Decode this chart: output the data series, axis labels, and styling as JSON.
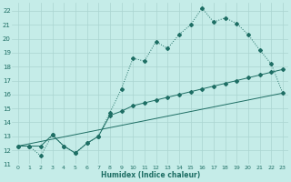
{
  "xlabel": "Humidex (Indice chaleur)",
  "background_color": "#c5ece8",
  "grid_color": "#aad4d0",
  "line_color": "#1e6e64",
  "xlim": [
    -0.5,
    23.5
  ],
  "ylim": [
    11,
    22.6
  ],
  "xticks": [
    0,
    1,
    2,
    3,
    4,
    5,
    6,
    7,
    8,
    9,
    10,
    11,
    12,
    13,
    14,
    15,
    16,
    17,
    18,
    19,
    20,
    21,
    22,
    23
  ],
  "yticks": [
    11,
    12,
    13,
    14,
    15,
    16,
    17,
    18,
    19,
    20,
    21,
    22
  ],
  "line1_x": [
    0,
    1,
    2,
    3,
    4,
    5,
    6,
    7,
    8,
    9,
    10,
    11,
    12,
    13,
    14,
    15,
    16,
    17,
    18,
    19,
    20,
    21,
    22,
    23
  ],
  "line1_y": [
    12.3,
    12.3,
    11.6,
    13.1,
    12.3,
    11.8,
    12.5,
    13.0,
    14.7,
    16.4,
    18.6,
    18.4,
    19.8,
    19.3,
    20.3,
    21.0,
    22.2,
    21.2,
    21.5,
    21.1,
    20.3,
    19.2,
    18.2,
    16.1
  ],
  "line2_x": [
    0,
    1,
    2,
    3,
    4,
    5,
    6,
    7,
    8,
    9,
    10,
    11,
    12,
    13,
    14,
    15,
    16,
    17,
    18,
    19,
    20,
    21,
    22,
    23
  ],
  "line2_y": [
    12.3,
    12.3,
    12.3,
    13.1,
    12.3,
    11.8,
    12.5,
    13.0,
    14.5,
    14.8,
    15.2,
    15.4,
    15.6,
    15.8,
    16.0,
    16.2,
    16.4,
    16.6,
    16.8,
    17.0,
    17.2,
    17.4,
    17.6,
    17.8
  ],
  "line3_x": [
    0,
    23
  ],
  "line3_y": [
    12.3,
    16.1
  ]
}
